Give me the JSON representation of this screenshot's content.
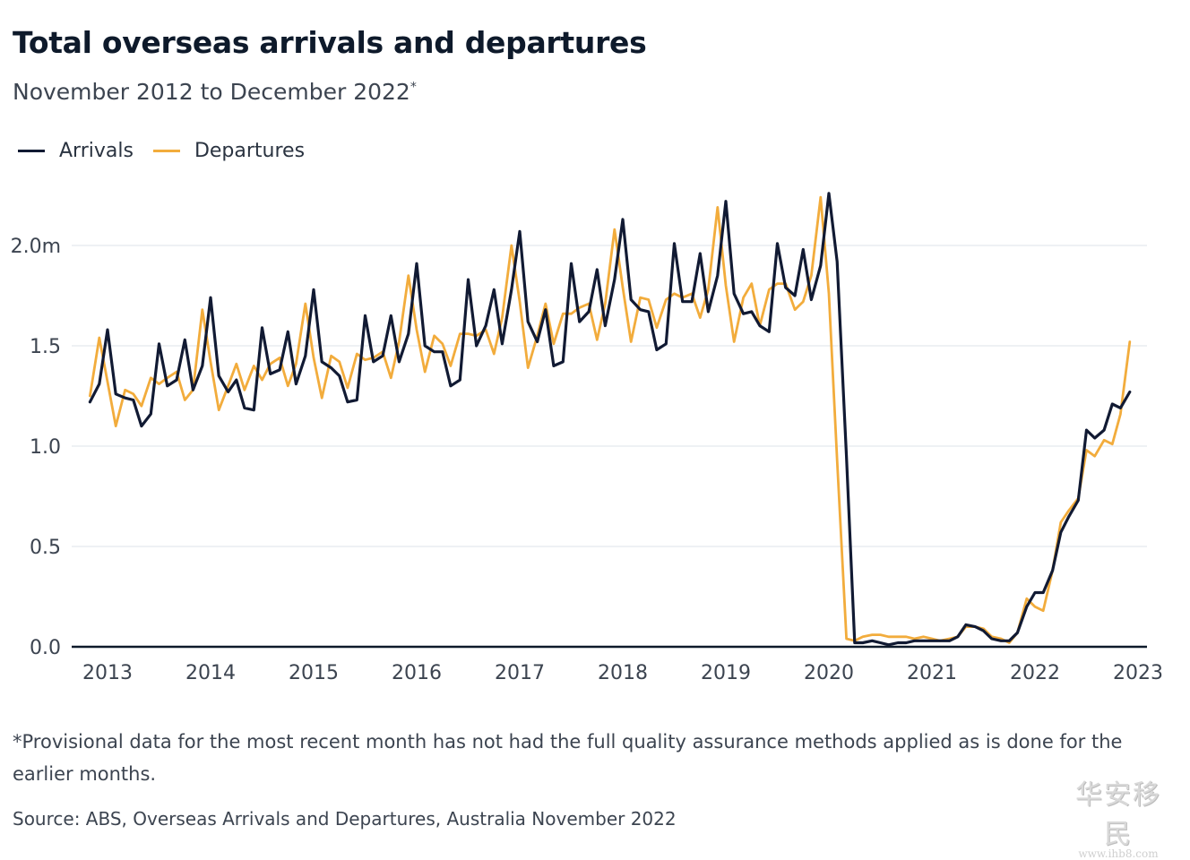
{
  "title": "Total overseas arrivals and departures",
  "subtitle": "November 2012 to December 2022",
  "subtitle_marker": "*",
  "footnote": "*Provisional data for the most recent month has not had the full quality assurance methods applied as is done for the earlier months.",
  "source": "Source: ABS, Overseas Arrivals and Departures, Australia November 2022",
  "watermark": {
    "main": "华安移民",
    "url": "www.ihb8.com"
  },
  "chart_data": {
    "type": "line",
    "y_unit": "million people per month",
    "ylim": [
      0,
      2.3
    ],
    "xlim": [
      2012.833,
      2023.083
    ],
    "y_ticks": [
      {
        "value": 0,
        "label": "0.0"
      },
      {
        "value": 0.5,
        "label": "0.5"
      },
      {
        "value": 1.0,
        "label": "1.0"
      },
      {
        "value": 1.5,
        "label": "1.5"
      },
      {
        "value": 2.0,
        "label": "2.0m"
      }
    ],
    "x_ticks": [
      {
        "value": 2013,
        "label": "2013"
      },
      {
        "value": 2014,
        "label": "2014"
      },
      {
        "value": 2015,
        "label": "2015"
      },
      {
        "value": 2016,
        "label": "2016"
      },
      {
        "value": 2017,
        "label": "2017"
      },
      {
        "value": 2018,
        "label": "2018"
      },
      {
        "value": 2019,
        "label": "2019"
      },
      {
        "value": 2020,
        "label": "2020"
      },
      {
        "value": 2021,
        "label": "2021"
      },
      {
        "value": 2022,
        "label": "2022"
      },
      {
        "value": 2023,
        "label": "2023"
      }
    ],
    "grid": true,
    "legend_position": "top-left",
    "series": [
      {
        "name": "Arrivals",
        "color": "#111a33",
        "x": [
          2012.83,
          2012.92,
          2013.0,
          2013.08,
          2013.17,
          2013.25,
          2013.33,
          2013.42,
          2013.5,
          2013.58,
          2013.67,
          2013.75,
          2013.83,
          2013.92,
          2014.0,
          2014.08,
          2014.17,
          2014.25,
          2014.33,
          2014.42,
          2014.5,
          2014.58,
          2014.67,
          2014.75,
          2014.83,
          2014.92,
          2015.0,
          2015.08,
          2015.17,
          2015.25,
          2015.33,
          2015.42,
          2015.5,
          2015.58,
          2015.67,
          2015.75,
          2015.83,
          2015.92,
          2016.0,
          2016.08,
          2016.17,
          2016.25,
          2016.33,
          2016.42,
          2016.5,
          2016.58,
          2016.67,
          2016.75,
          2016.83,
          2016.92,
          2017.0,
          2017.08,
          2017.17,
          2017.25,
          2017.33,
          2017.42,
          2017.5,
          2017.58,
          2017.67,
          2017.75,
          2017.83,
          2017.92,
          2018.0,
          2018.08,
          2018.17,
          2018.25,
          2018.33,
          2018.42,
          2018.5,
          2018.58,
          2018.67,
          2018.75,
          2018.83,
          2018.92,
          2019.0,
          2019.08,
          2019.17,
          2019.25,
          2019.33,
          2019.42,
          2019.5,
          2019.58,
          2019.67,
          2019.75,
          2019.83,
          2019.92,
          2020.0,
          2020.08,
          2020.17,
          2020.25,
          2020.33,
          2020.42,
          2020.5,
          2020.58,
          2020.67,
          2020.75,
          2020.83,
          2020.92,
          2021.0,
          2021.08,
          2021.17,
          2021.25,
          2021.33,
          2021.42,
          2021.5,
          2021.58,
          2021.67,
          2021.75,
          2021.83,
          2021.92,
          2022.0,
          2022.08,
          2022.17,
          2022.25,
          2022.33,
          2022.42,
          2022.5,
          2022.58,
          2022.67,
          2022.75,
          2022.83,
          2022.92
        ],
        "values": [
          1.22,
          1.31,
          1.58,
          1.26,
          1.24,
          1.23,
          1.1,
          1.16,
          1.51,
          1.3,
          1.33,
          1.53,
          1.28,
          1.4,
          1.74,
          1.35,
          1.27,
          1.33,
          1.19,
          1.18,
          1.59,
          1.36,
          1.38,
          1.57,
          1.31,
          1.45,
          1.78,
          1.42,
          1.39,
          1.35,
          1.22,
          1.23,
          1.65,
          1.42,
          1.45,
          1.65,
          1.42,
          1.56,
          1.91,
          1.5,
          1.47,
          1.47,
          1.3,
          1.33,
          1.83,
          1.5,
          1.6,
          1.78,
          1.51,
          1.78,
          2.07,
          1.62,
          1.52,
          1.68,
          1.4,
          1.42,
          1.91,
          1.62,
          1.67,
          1.88,
          1.6,
          1.83,
          2.13,
          1.73,
          1.68,
          1.67,
          1.48,
          1.51,
          2.01,
          1.72,
          1.72,
          1.96,
          1.67,
          1.85,
          2.22,
          1.76,
          1.66,
          1.67,
          1.6,
          1.57,
          2.01,
          1.79,
          1.75,
          1.98,
          1.73,
          1.9,
          2.26,
          1.92,
          0.95,
          0.02,
          0.02,
          0.03,
          0.02,
          0.01,
          0.02,
          0.02,
          0.03,
          0.03,
          0.03,
          0.03,
          0.03,
          0.05,
          0.11,
          0.1,
          0.08,
          0.04,
          0.03,
          0.03,
          0.07,
          0.2,
          0.27,
          0.27,
          0.38,
          0.57,
          0.65,
          0.73,
          1.08,
          1.04,
          1.08,
          1.21,
          1.19,
          1.27
        ]
      },
      {
        "name": "Departures",
        "color": "#f2ac3c",
        "x": [
          2012.83,
          2012.92,
          2013.0,
          2013.08,
          2013.17,
          2013.25,
          2013.33,
          2013.42,
          2013.5,
          2013.58,
          2013.67,
          2013.75,
          2013.83,
          2013.92,
          2014.0,
          2014.08,
          2014.17,
          2014.25,
          2014.33,
          2014.42,
          2014.5,
          2014.58,
          2014.67,
          2014.75,
          2014.83,
          2014.92,
          2015.0,
          2015.08,
          2015.17,
          2015.25,
          2015.33,
          2015.42,
          2015.5,
          2015.58,
          2015.67,
          2015.75,
          2015.83,
          2015.92,
          2016.0,
          2016.08,
          2016.17,
          2016.25,
          2016.33,
          2016.42,
          2016.5,
          2016.58,
          2016.67,
          2016.75,
          2016.83,
          2016.92,
          2017.0,
          2017.08,
          2017.17,
          2017.25,
          2017.33,
          2017.42,
          2017.5,
          2017.58,
          2017.67,
          2017.75,
          2017.83,
          2017.92,
          2018.0,
          2018.08,
          2018.17,
          2018.25,
          2018.33,
          2018.42,
          2018.5,
          2018.58,
          2018.67,
          2018.75,
          2018.83,
          2018.92,
          2019.0,
          2019.08,
          2019.17,
          2019.25,
          2019.33,
          2019.42,
          2019.5,
          2019.58,
          2019.67,
          2019.75,
          2019.83,
          2019.92,
          2020.0,
          2020.08,
          2020.17,
          2020.25,
          2020.33,
          2020.42,
          2020.5,
          2020.58,
          2020.67,
          2020.75,
          2020.83,
          2020.92,
          2021.0,
          2021.08,
          2021.17,
          2021.25,
          2021.33,
          2021.42,
          2021.5,
          2021.58,
          2021.67,
          2021.75,
          2021.83,
          2021.92,
          2022.0,
          2022.08,
          2022.17,
          2022.25,
          2022.33,
          2022.42,
          2022.5,
          2022.58,
          2022.67,
          2022.75,
          2022.83,
          2022.92
        ],
        "values": [
          1.25,
          1.54,
          1.32,
          1.1,
          1.28,
          1.26,
          1.2,
          1.34,
          1.31,
          1.34,
          1.37,
          1.23,
          1.28,
          1.68,
          1.42,
          1.18,
          1.3,
          1.41,
          1.28,
          1.4,
          1.33,
          1.41,
          1.44,
          1.3,
          1.41,
          1.71,
          1.44,
          1.24,
          1.45,
          1.42,
          1.29,
          1.46,
          1.43,
          1.44,
          1.47,
          1.34,
          1.52,
          1.85,
          1.58,
          1.37,
          1.55,
          1.51,
          1.4,
          1.56,
          1.56,
          1.55,
          1.58,
          1.46,
          1.64,
          2.0,
          1.72,
          1.39,
          1.55,
          1.71,
          1.51,
          1.66,
          1.66,
          1.69,
          1.71,
          1.53,
          1.71,
          2.08,
          1.79,
          1.52,
          1.74,
          1.73,
          1.59,
          1.73,
          1.76,
          1.74,
          1.76,
          1.64,
          1.78,
          2.19,
          1.8,
          1.52,
          1.74,
          1.81,
          1.6,
          1.78,
          1.81,
          1.81,
          1.68,
          1.72,
          1.85,
          2.24,
          1.76,
          0.93,
          0.04,
          0.03,
          0.05,
          0.06,
          0.06,
          0.05,
          0.05,
          0.05,
          0.04,
          0.05,
          0.04,
          0.03,
          0.04,
          0.05,
          0.1,
          0.1,
          0.09,
          0.05,
          0.04,
          0.02,
          0.07,
          0.24,
          0.2,
          0.18,
          0.38,
          0.62,
          0.68,
          0.74,
          0.98,
          0.95,
          1.03,
          1.01,
          1.16,
          1.52
        ]
      }
    ]
  }
}
